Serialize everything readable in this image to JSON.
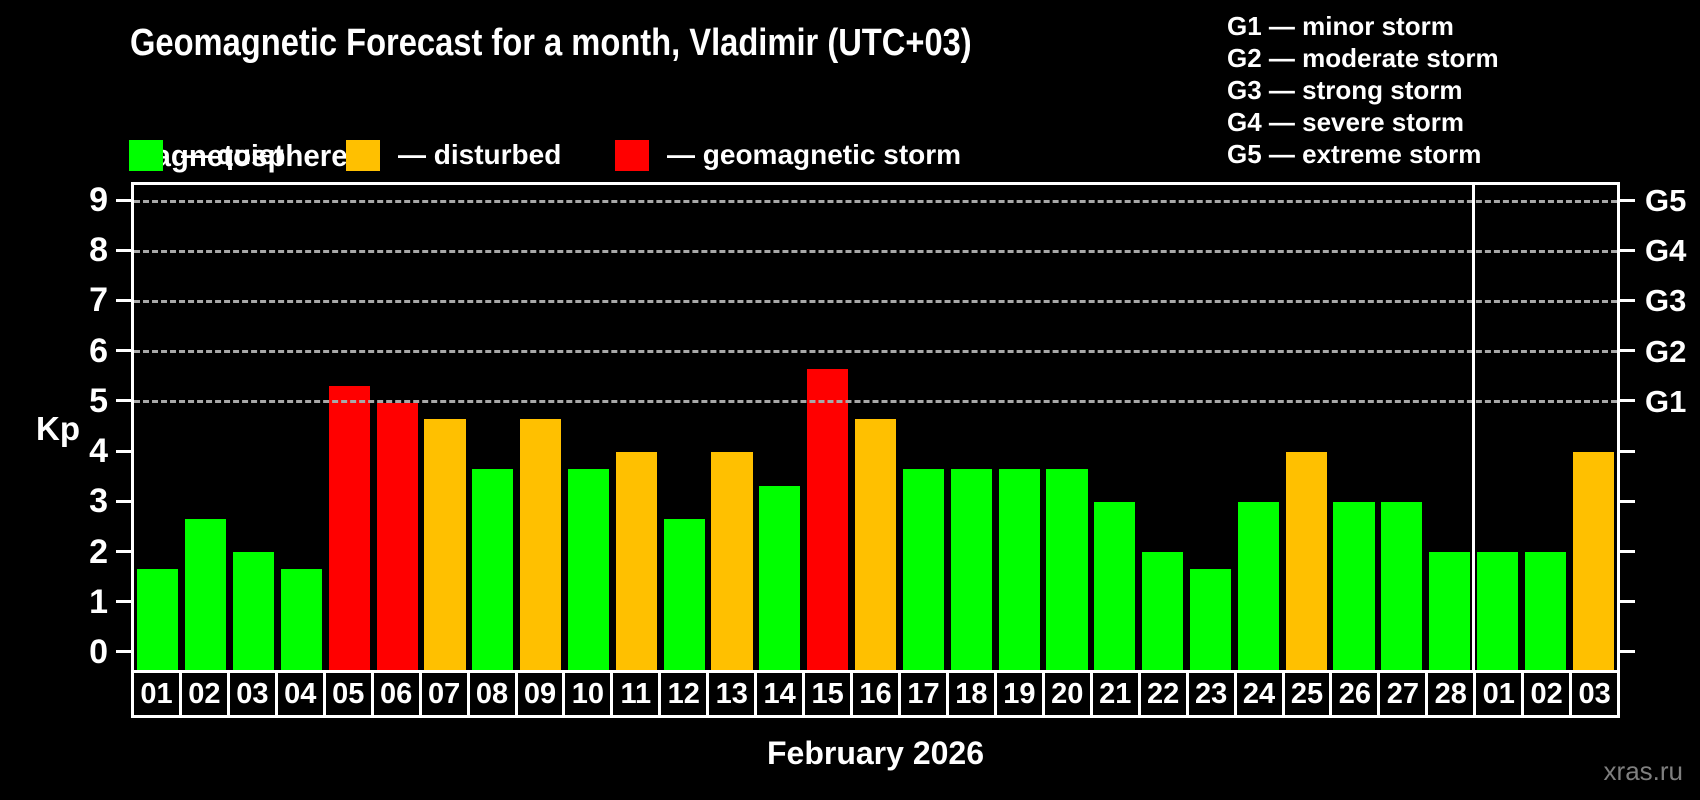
{
  "title": "Geomagnetic Forecast for a month, Vladimir (UTC+03)",
  "subtitle": "Magnetosphere",
  "condition_legend": [
    {
      "key": "quiet",
      "label": "— quiet",
      "color": "#00ff00"
    },
    {
      "key": "disturbed",
      "label": "— disturbed",
      "color": "#ffc000"
    },
    {
      "key": "storm",
      "label": "— geomagnetic storm",
      "color": "#ff0000"
    }
  ],
  "g_scale_legend": [
    "G1 — minor storm",
    "G2 — moderate storm",
    "G3 — strong storm",
    "G4 — severe storm",
    "G5 — extreme storm"
  ],
  "watermark": "xras.ru",
  "chart_data": {
    "type": "bar",
    "title": "Geomagnetic Forecast for a month, Vladimir (UTC+03)",
    "ylabel": "Kp",
    "xlabel": "February 2026",
    "ylim": [
      -0.36,
      9.36
    ],
    "y_ticks": [
      0,
      1,
      2,
      3,
      4,
      5,
      6,
      7,
      8,
      9
    ],
    "gridlines": [
      5,
      6,
      7,
      8,
      9
    ],
    "grid_style": "dashed",
    "legend_position": "top",
    "right_axis_labels": [
      {
        "value": 5,
        "label": "G1"
      },
      {
        "value": 6,
        "label": "G2"
      },
      {
        "value": 7,
        "label": "G3"
      },
      {
        "value": 8,
        "label": "G4"
      },
      {
        "value": 9,
        "label": "G5"
      }
    ],
    "categories": [
      "01",
      "02",
      "03",
      "04",
      "05",
      "06",
      "07",
      "08",
      "09",
      "10",
      "11",
      "12",
      "13",
      "14",
      "15",
      "16",
      "17",
      "18",
      "19",
      "20",
      "21",
      "22",
      "23",
      "24",
      "25",
      "26",
      "27",
      "28",
      "01",
      "02",
      "03"
    ],
    "values": [
      1.67,
      2.67,
      2.0,
      1.67,
      5.33,
      5.0,
      4.67,
      3.67,
      4.67,
      3.67,
      4.0,
      2.67,
      4.0,
      3.33,
      5.67,
      4.67,
      3.67,
      3.67,
      3.67,
      3.67,
      3.0,
      2.0,
      1.67,
      3.0,
      4.0,
      3.0,
      3.0,
      2.0,
      2.0,
      2.0,
      4.0
    ],
    "states": [
      "quiet",
      "quiet",
      "quiet",
      "quiet",
      "storm",
      "storm",
      "disturbed",
      "quiet",
      "disturbed",
      "quiet",
      "disturbed",
      "quiet",
      "disturbed",
      "quiet",
      "storm",
      "disturbed",
      "quiet",
      "quiet",
      "quiet",
      "quiet",
      "quiet",
      "quiet",
      "quiet",
      "quiet",
      "disturbed",
      "quiet",
      "quiet",
      "quiet",
      "quiet",
      "quiet",
      "disturbed"
    ],
    "colors": {
      "quiet": "#00ff00",
      "disturbed": "#ffc000",
      "storm": "#ff0000"
    },
    "month_separator_after": 28
  }
}
